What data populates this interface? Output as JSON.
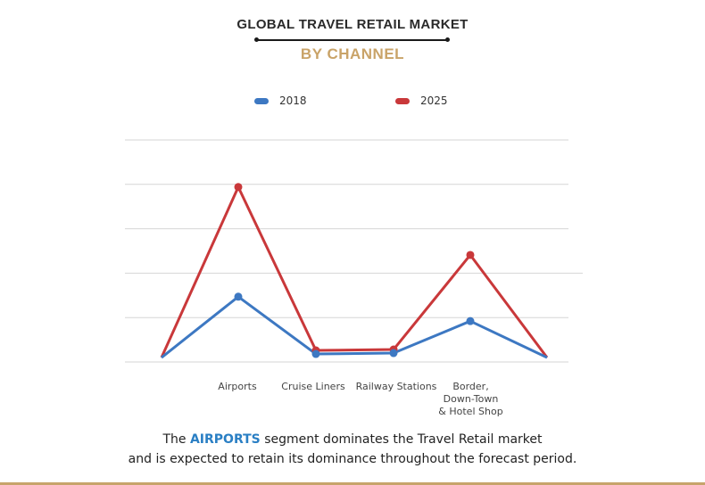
{
  "header": {
    "title": "GLOBAL TRAVEL RETAIL MARKET",
    "subtitle": "BY CHANNEL"
  },
  "legend": [
    {
      "label": "2018",
      "color": "#3d78c2"
    },
    {
      "label": "2025",
      "color": "#c9383a"
    }
  ],
  "caption": {
    "prefix": "The ",
    "highlight": "AIRPORTS",
    "line1_suffix": " segment dominates the Travel Retail market",
    "line2": "and is expected to retain its dominance throughout the forecast period."
  },
  "colors": {
    "subtitle": "#c9a368",
    "highlight": "#2a7fc4",
    "bottom_border": "#c7a46b",
    "gridline": "#d6d6d6"
  },
  "chart_data": {
    "type": "line",
    "title": "GLOBAL TRAVEL RETAIL MARKET BY CHANNEL",
    "xlabel": "",
    "ylabel": "",
    "categories": [
      "",
      "Airports",
      "Cruise Liners",
      "Railway Stations",
      "Border, Down-Town & Hotel Shop",
      ""
    ],
    "series": [
      {
        "name": "2018",
        "color": "#3d78c2",
        "values": [
          0.1,
          1.47,
          0.18,
          0.2,
          0.92,
          0.1
        ]
      },
      {
        "name": "2025",
        "color": "#c9383a",
        "values": [
          0.1,
          3.94,
          0.26,
          0.28,
          2.41,
          0.1
        ]
      }
    ],
    "ylim": [
      0,
      5
    ],
    "grid": true,
    "y_tick_labels_shown": false,
    "legend_position": "top",
    "note": "Values are relative (no y-axis labels shown); estimated from gridline positions in gridline units."
  }
}
